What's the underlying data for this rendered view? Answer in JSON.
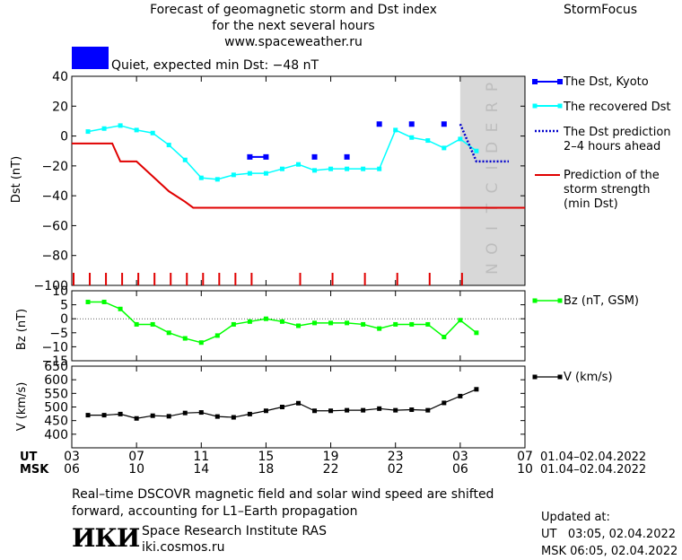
{
  "header": {
    "title_lines": [
      "Forecast of geomagnetic storm and Dst index",
      "for the next several hours",
      "www.spaceweather.ru"
    ],
    "brand": "StormFocus"
  },
  "status": {
    "label": "Quiet, expected min Dst: −48 nT",
    "color": "#0000ff"
  },
  "colors": {
    "dst_kyoto": "#0000ff",
    "recovered": "#00ffff",
    "prediction_line": "#0000cc",
    "storm_strength": "#e00000",
    "bz": "#00ff00",
    "v": "#000000",
    "prediction_zone": "#d8d8d8"
  },
  "chart_data": [
    {
      "type": "line",
      "ylabel": "Dst (nT)",
      "ylim": [
        -100,
        40
      ],
      "yticks": [
        40,
        20,
        0,
        -20,
        -40,
        -60,
        -80,
        -100
      ],
      "yticklabels": [
        "40",
        "20",
        "0",
        "−20",
        "−40",
        "−60",
        "−80",
        "−100"
      ],
      "prediction_text": "PREDICTION",
      "prediction_start_hours": 24,
      "x_hours_unit": "hours since 01.04.2022 03 UT",
      "series": [
        {
          "name": "The Dst, Kyoto",
          "marker": "square",
          "points": [
            [
              11,
              -14
            ],
            [
              12,
              -14
            ],
            [
              15,
              -14
            ],
            [
              17,
              -14
            ],
            [
              19,
              8
            ],
            [
              21,
              8
            ],
            [
              23,
              8
            ]
          ],
          "segments": [
            [
              [
                11,
                -14
              ],
              [
                12,
                -14
              ]
            ]
          ]
        },
        {
          "name": "The recovered Dst",
          "marker": "square",
          "points": [
            [
              1,
              3
            ],
            [
              2,
              5
            ],
            [
              3,
              7
            ],
            [
              4,
              4
            ],
            [
              5,
              2
            ],
            [
              6,
              -6
            ],
            [
              7,
              -16
            ],
            [
              8,
              -28
            ],
            [
              9,
              -29
            ],
            [
              10,
              -26
            ],
            [
              11,
              -25
            ],
            [
              12,
              -25
            ],
            [
              13,
              -22
            ],
            [
              14,
              -19
            ],
            [
              15,
              -23
            ],
            [
              16,
              -22
            ],
            [
              17,
              -22
            ],
            [
              18,
              -22
            ],
            [
              19,
              -22
            ],
            [
              20,
              4
            ],
            [
              21,
              -1
            ],
            [
              22,
              -3
            ],
            [
              23,
              -8
            ],
            [
              24,
              -2
            ],
            [
              25,
              -10
            ]
          ]
        },
        {
          "name": "The Dst prediction",
          "name_line2": "2–4 hours ahead",
          "style": "dotted",
          "points": [
            [
              24,
              8
            ],
            [
              25,
              -17
            ],
            [
              27,
              -17
            ]
          ]
        },
        {
          "name": "Prediction of the",
          "name_line2": "storm strength",
          "name_line3": "(min Dst)",
          "style": "step",
          "points": [
            [
              0,
              -5
            ],
            [
              2,
              -5
            ],
            [
              2.5,
              -5
            ],
            [
              3,
              -17
            ],
            [
              4,
              -17
            ],
            [
              5,
              -27
            ],
            [
              6,
              -37
            ],
            [
              7,
              -44
            ],
            [
              7.5,
              -48
            ],
            [
              28,
              -48
            ]
          ]
        }
      ],
      "red_ticks_hours": [
        0,
        1,
        2,
        3,
        4,
        5,
        6,
        7,
        8,
        9,
        10,
        11,
        14,
        16,
        18,
        20,
        22,
        24
      ]
    },
    {
      "type": "line",
      "ylabel": "Bz (nT)",
      "ylim": [
        -15,
        10
      ],
      "yticks": [
        10,
        5,
        0,
        -5,
        -10,
        -15
      ],
      "yticklabels": [
        "10",
        "5",
        "0",
        "−5",
        "−10",
        "−15"
      ],
      "series": [
        {
          "name": "Bz (nT, GSM)",
          "points": [
            [
              1,
              6
            ],
            [
              2,
              6
            ],
            [
              3,
              3.5
            ],
            [
              4,
              -2
            ],
            [
              5,
              -2
            ],
            [
              6,
              -5
            ],
            [
              7,
              -7
            ],
            [
              8,
              -8.5
            ],
            [
              9,
              -6
            ],
            [
              10,
              -2
            ],
            [
              11,
              -1
            ],
            [
              12,
              0
            ],
            [
              13,
              -1
            ],
            [
              14,
              -2.5
            ],
            [
              15,
              -1.5
            ],
            [
              16,
              -1.5
            ],
            [
              17,
              -1.5
            ],
            [
              18,
              -2
            ],
            [
              19,
              -3.5
            ],
            [
              20,
              -2
            ],
            [
              21,
              -2
            ],
            [
              22,
              -2
            ],
            [
              23,
              -6.5
            ],
            [
              24,
              -0.5
            ],
            [
              25,
              -5
            ]
          ]
        }
      ]
    },
    {
      "type": "line",
      "ylabel": "V (km/s)",
      "ylim": [
        350,
        650
      ],
      "yticks": [
        650,
        600,
        550,
        500,
        450,
        400
      ],
      "yticklabels": [
        "650",
        "600",
        "550",
        "500",
        "450",
        "400"
      ],
      "series": [
        {
          "name": "V (km/s)",
          "points": [
            [
              1,
              470
            ],
            [
              2,
              470
            ],
            [
              3,
              474
            ],
            [
              4,
              458
            ],
            [
              5,
              468
            ],
            [
              6,
              466
            ],
            [
              7,
              478
            ],
            [
              8,
              480
            ],
            [
              9,
              465
            ],
            [
              10,
              462
            ],
            [
              11,
              474
            ],
            [
              12,
              486
            ],
            [
              13,
              500
            ],
            [
              14,
              514
            ],
            [
              15,
              486
            ],
            [
              16,
              486
            ],
            [
              17,
              488
            ],
            [
              18,
              488
            ],
            [
              19,
              494
            ],
            [
              20,
              488
            ],
            [
              21,
              490
            ],
            [
              22,
              488
            ],
            [
              23,
              515
            ],
            [
              24,
              540
            ],
            [
              25,
              565
            ]
          ]
        }
      ]
    }
  ],
  "x_axis": {
    "range_hours": [
      0,
      28
    ],
    "ticks_hours": [
      0,
      4,
      8,
      12,
      16,
      20,
      24,
      28
    ],
    "ut_label": "UT",
    "msk_label": "MSK",
    "ut_ticks": [
      "03",
      "07",
      "11",
      "15",
      "19",
      "23",
      "03",
      "07"
    ],
    "msk_ticks": [
      "06",
      "10",
      "14",
      "18",
      "22",
      "02",
      "06",
      "10"
    ],
    "ut_range": "01.04–02.04.2022",
    "msk_range": "01.04–02.04.2022"
  },
  "footer": {
    "note_line1": "Real–time DSCOVR magnetic field and solar wind speed are shifted",
    "note_line2": "forward, accounting for L1–Earth propagation",
    "institute_logo": "ИКИ",
    "institute_name": "Space Research Institute RAS",
    "institute_url": "iki.cosmos.ru",
    "updated_label": "Updated at:",
    "updated_ut": "UT   03:05, 02.04.2022",
    "updated_msk": "MSK 06:05, 02.04.2022"
  }
}
